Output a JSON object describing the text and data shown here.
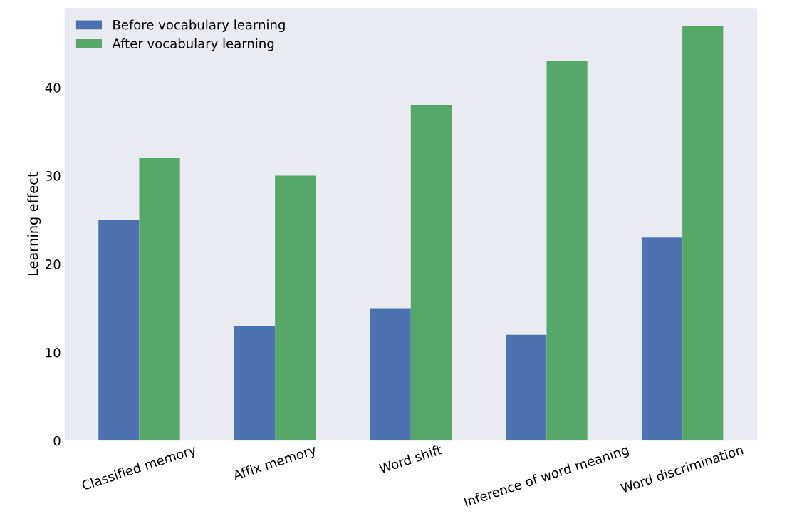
{
  "chart_data": {
    "type": "bar",
    "ylabel": "Learning effect",
    "categories": [
      "Classified memory",
      "Affix memory",
      "Word shift",
      "Inference of word meaning",
      "Word discrimination"
    ],
    "series": [
      {
        "name": "Before vocabulary learning",
        "color": "#4c72b0",
        "values": [
          25,
          13,
          15,
          12,
          23
        ]
      },
      {
        "name": "After vocabulary learning",
        "color": "#55a868",
        "values": [
          32,
          30,
          38,
          43,
          47
        ]
      }
    ],
    "ylim": [
      0,
      49
    ],
    "yticks": [
      0,
      10,
      20,
      30,
      40
    ],
    "grid": false,
    "legend": "top left"
  }
}
